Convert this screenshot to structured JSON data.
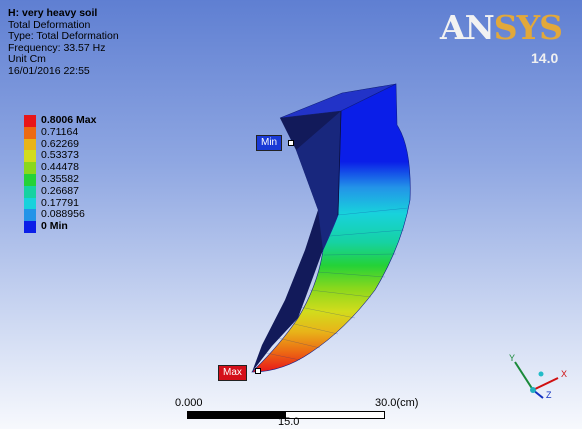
{
  "info": {
    "title": "H: very heavy soil",
    "line1": "Total Deformation",
    "line2": "Type: Total Deformation",
    "line3": "Frequency: 33.57 Hz",
    "line4": "Unit Cm",
    "line5": "16/01/2016 22:55"
  },
  "legend": [
    {
      "label": "0.8006 Max",
      "color": "#e8161a"
    },
    {
      "label": "0.71164",
      "color": "#ec6a13"
    },
    {
      "label": "0.62269",
      "color": "#e8b419"
    },
    {
      "label": "0.53373",
      "color": "#d2dc1c"
    },
    {
      "label": "0.44478",
      "color": "#8ad81c"
    },
    {
      "label": "0.35582",
      "color": "#24d238"
    },
    {
      "label": "0.26687",
      "color": "#16d2a2"
    },
    {
      "label": "0.17791",
      "color": "#18d2dc"
    },
    {
      "label": "0.088956",
      "color": "#2394e8"
    },
    {
      "label": "0 Min",
      "color": "#0a1ee8"
    }
  ],
  "logo": {
    "an": "AN",
    "sys": "SYS",
    "version": "14.0"
  },
  "probes": {
    "min": "Min",
    "max": "Max"
  },
  "scale": {
    "start": "0.000",
    "end": "30.0(cm)",
    "mid": "15.0"
  },
  "triad": {
    "x": "X",
    "y": "Y",
    "z": "Z"
  }
}
